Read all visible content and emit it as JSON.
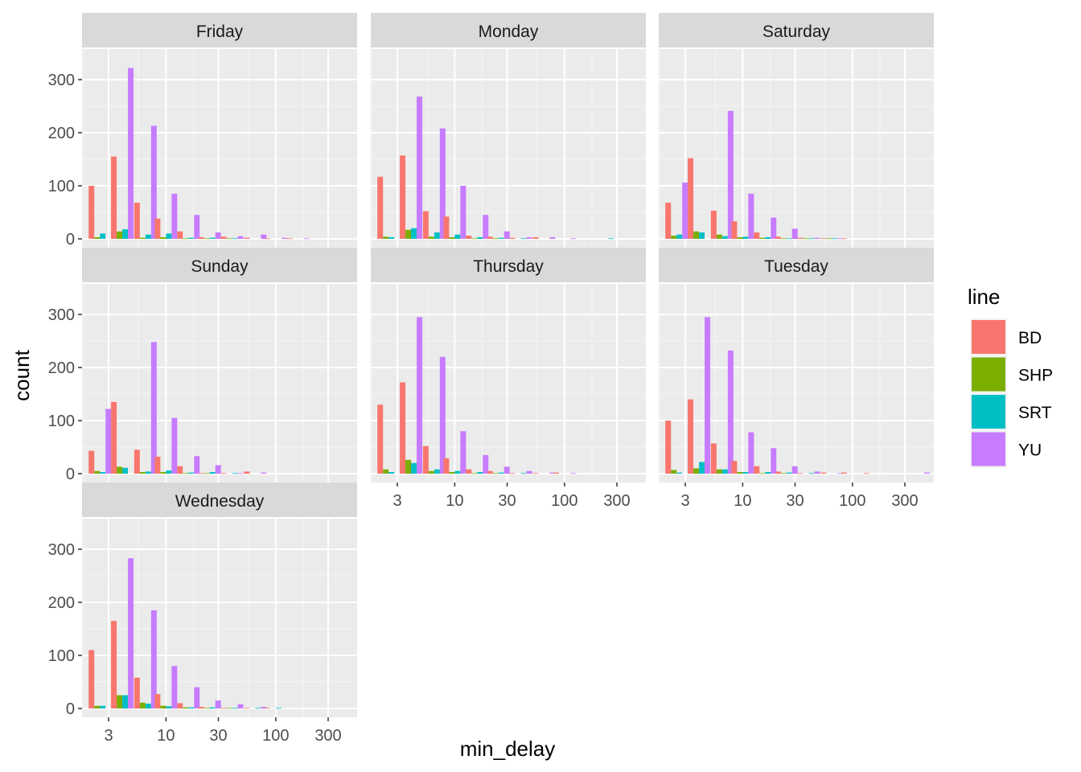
{
  "chart_data": {
    "type": "bar",
    "xlabel": "min_delay",
    "ylabel": "count",
    "x_scale": "log10",
    "x_ticks": [
      3,
      10,
      30,
      100,
      300
    ],
    "x_tick_labels": [
      "3",
      "10",
      "30",
      "100",
      "300"
    ],
    "y_ticks": [
      0,
      100,
      200,
      300
    ],
    "y_tick_labels": [
      "0",
      "100",
      "200",
      "300"
    ],
    "ylim": [
      0,
      340
    ],
    "grid": true,
    "legend": {
      "title": "line",
      "position": "right"
    },
    "lines": [
      "BD",
      "SHP",
      "SRT",
      "YU"
    ],
    "colors": {
      "BD": "#F8766D",
      "SHP": "#7CAE00",
      "SRT": "#00BFC4",
      "YU": "#C77CFF"
    },
    "bin_centers": [
      2.5,
      4,
      6.5,
      10,
      16,
      25,
      40,
      65,
      100,
      160,
      250,
      400
    ],
    "facets": [
      {
        "title": "Friday",
        "series": {
          "BD": [
            100,
            155,
            68,
            38,
            14,
            3,
            4,
            2,
            1,
            1,
            0,
            0
          ],
          "SHP": [
            3,
            14,
            2,
            3,
            1,
            1,
            1,
            0,
            0,
            0,
            0,
            0
          ],
          "SRT": [
            10,
            18,
            8,
            10,
            2,
            2,
            1,
            0,
            0,
            0,
            0,
            0
          ],
          "YU": [
            0,
            322,
            213,
            85,
            45,
            12,
            5,
            8,
            2,
            1,
            0,
            0
          ]
        }
      },
      {
        "title": "Monday",
        "series": {
          "BD": [
            117,
            157,
            52,
            42,
            6,
            4,
            2,
            3,
            0,
            0,
            0,
            0
          ],
          "SHP": [
            4,
            17,
            4,
            3,
            1,
            1,
            0,
            0,
            0,
            0,
            0,
            0
          ],
          "SRT": [
            3,
            20,
            12,
            8,
            3,
            2,
            1,
            0,
            0,
            0,
            1,
            0
          ],
          "YU": [
            0,
            268,
            208,
            100,
            45,
            14,
            3,
            3,
            1,
            0,
            0,
            0
          ]
        }
      },
      {
        "title": "Saturday",
        "series": {
          "BD": [
            68,
            152,
            53,
            33,
            12,
            4,
            2,
            1,
            1,
            0,
            0,
            0
          ],
          "SHP": [
            6,
            14,
            8,
            3,
            2,
            1,
            1,
            1,
            0,
            0,
            0,
            0
          ],
          "SRT": [
            8,
            12,
            5,
            4,
            3,
            1,
            1,
            1,
            0,
            0,
            0,
            0
          ],
          "YU": [
            106,
            0,
            241,
            85,
            40,
            19,
            2,
            1,
            0,
            0,
            0,
            0
          ]
        }
      },
      {
        "title": "Sunday",
        "series": {
          "BD": [
            43,
            135,
            45,
            32,
            14,
            1,
            1,
            4,
            0,
            0,
            0,
            0
          ],
          "SHP": [
            5,
            13,
            3,
            3,
            1,
            1,
            0,
            0,
            0,
            0,
            0,
            0
          ],
          "SRT": [
            3,
            11,
            4,
            6,
            2,
            3,
            1,
            0,
            0,
            0,
            0,
            0
          ],
          "YU": [
            122,
            0,
            248,
            105,
            33,
            16,
            1,
            2,
            0,
            0,
            0,
            0
          ]
        }
      },
      {
        "title": "Thursday",
        "series": {
          "BD": [
            130,
            172,
            52,
            29,
            8,
            5,
            1,
            1,
            2,
            0,
            0,
            0
          ],
          "SHP": [
            8,
            26,
            5,
            3,
            1,
            1,
            0,
            0,
            0,
            0,
            0,
            0
          ],
          "SRT": [
            3,
            20,
            8,
            5,
            3,
            2,
            1,
            0,
            0,
            0,
            0,
            0
          ],
          "YU": [
            0,
            295,
            220,
            80,
            35,
            13,
            5,
            2,
            1,
            0,
            0,
            0
          ]
        }
      },
      {
        "title": "Tuesday",
        "series": {
          "BD": [
            100,
            140,
            57,
            24,
            14,
            4,
            1,
            2,
            2,
            1,
            0,
            0
          ],
          "SHP": [
            7,
            10,
            8,
            3,
            1,
            1,
            0,
            0,
            0,
            0,
            0,
            0
          ],
          "SRT": [
            2,
            22,
            8,
            3,
            3,
            2,
            1,
            0,
            0,
            0,
            0,
            0
          ],
          "YU": [
            0,
            295,
            232,
            78,
            48,
            14,
            4,
            1,
            0,
            0,
            0,
            2
          ]
        }
      },
      {
        "title": "Wednesday",
        "series": {
          "BD": [
            110,
            165,
            58,
            27,
            10,
            3,
            1,
            1,
            1,
            0,
            0,
            0
          ],
          "SHP": [
            5,
            25,
            11,
            5,
            2,
            1,
            1,
            0,
            0,
            0,
            0,
            0
          ],
          "SRT": [
            5,
            25,
            9,
            4,
            2,
            2,
            1,
            1,
            1,
            0,
            0,
            0
          ],
          "YU": [
            0,
            283,
            185,
            80,
            40,
            15,
            8,
            3,
            0,
            0,
            0,
            0
          ]
        }
      }
    ]
  }
}
